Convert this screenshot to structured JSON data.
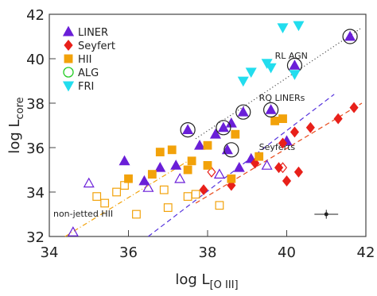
{
  "chart_data": {
    "type": "scatter",
    "x_label": {
      "main": "log L",
      "sub": "[O III]"
    },
    "y_label": {
      "main": "log L",
      "sub": "core"
    },
    "xlim": [
      34,
      42
    ],
    "xticks": [
      34,
      36,
      38,
      40,
      42
    ],
    "ylim": [
      32,
      42
    ],
    "yticks": [
      32,
      34,
      36,
      38,
      40,
      42
    ],
    "legend": "top-left",
    "series": [
      {
        "name": "LINER",
        "marker": "triangle",
        "color": "#6a1fd8",
        "x": [
          41.6,
          40.2,
          39.6,
          38.9,
          37.5,
          38.4,
          38.6,
          38.2,
          37.8,
          38.5,
          39.1,
          36.8,
          35.9,
          38.8,
          40.0,
          36.4,
          37.2,
          34.6,
          35.0,
          36.5,
          37.3,
          38.3,
          39.5
        ],
        "y": [
          41.0,
          39.7,
          37.7,
          37.6,
          36.8,
          36.9,
          37.1,
          36.6,
          36.1,
          35.9,
          35.5,
          35.1,
          35.4,
          35.1,
          36.3,
          34.5,
          35.2,
          32.2,
          34.4,
          34.2,
          34.6,
          34.8,
          35.2
        ],
        "hollow": [
          false,
          false,
          false,
          false,
          false,
          false,
          false,
          false,
          false,
          false,
          false,
          false,
          false,
          false,
          false,
          false,
          false,
          true,
          true,
          true,
          true,
          true,
          true
        ]
      },
      {
        "name": "Seyfert",
        "marker": "diamond",
        "color": "#e8201a",
        "x": [
          41.7,
          41.3,
          40.6,
          40.2,
          39.9,
          40.3,
          40.0,
          38.6,
          37.9,
          39.2,
          39.8,
          39.9,
          38.1
        ],
        "y": [
          37.8,
          37.3,
          36.9,
          36.7,
          36.2,
          34.9,
          34.5,
          34.3,
          34.1,
          35.3,
          35.1,
          35.1,
          34.9
        ],
        "hollow": [
          false,
          false,
          false,
          false,
          false,
          false,
          false,
          false,
          false,
          false,
          false,
          true,
          true
        ]
      },
      {
        "name": "HII",
        "marker": "square",
        "color": "#f2a20a",
        "x": [
          36.8,
          37.1,
          37.6,
          38.0,
          37.5,
          36.6,
          36.0,
          35.7,
          35.4,
          36.2,
          37.0,
          37.5,
          38.3,
          38.6,
          39.3,
          39.7,
          39.9,
          38.7,
          38.0,
          35.2,
          35.9,
          36.9,
          37.7
        ],
        "y": [
          35.8,
          35.9,
          35.4,
          35.2,
          35.0,
          34.8,
          34.6,
          34.0,
          33.5,
          33.0,
          33.3,
          33.8,
          33.4,
          34.6,
          35.6,
          37.2,
          37.3,
          36.6,
          36.1,
          33.8,
          34.3,
          34.1,
          33.9
        ],
        "hollow": [
          false,
          false,
          false,
          false,
          false,
          false,
          false,
          true,
          true,
          true,
          true,
          true,
          true,
          false,
          false,
          false,
          false,
          false,
          false,
          true,
          true,
          true,
          true
        ]
      },
      {
        "name": "ALG",
        "marker": "circle",
        "color": "#22cc22",
        "x": [
          41.6,
          40.2,
          39.6,
          38.9,
          37.5,
          38.4,
          38.6
        ],
        "y": [
          41.0,
          39.7,
          37.7,
          37.6,
          36.8,
          36.9,
          35.9
        ],
        "hollow": [
          true,
          true,
          true,
          true,
          true,
          true,
          true
        ]
      },
      {
        "name": "FRI",
        "marker": "triangle-down",
        "color": "#22ddee",
        "x": [
          40.3,
          39.9,
          40.2,
          39.5,
          39.6,
          38.9,
          39.1
        ],
        "y": [
          41.5,
          41.4,
          39.3,
          39.8,
          39.6,
          39.0,
          39.4
        ],
        "hollow": [
          false,
          false,
          false,
          false,
          false,
          false,
          false
        ]
      }
    ],
    "lines": [
      {
        "label": "RL AGN",
        "color": "#333333",
        "dash": "1,3",
        "x": [
          37.7,
          41.9
        ],
        "y": [
          36.4,
          41.4
        ],
        "label_x": 39.7,
        "label_y": 40.0
      },
      {
        "label": "RQ LINERs",
        "color": "#5533dd",
        "dash": "6,4",
        "x": [
          36.5,
          41.2
        ],
        "y": [
          32.0,
          38.4
        ],
        "label_x": 39.3,
        "label_y": 38.1
      },
      {
        "label": "Seyferts",
        "color": "#e84a1a",
        "dash": "6,4",
        "x": [
          37.7,
          41.9
        ],
        "y": [
          33.5,
          38.0
        ],
        "label_x": 39.3,
        "label_y": 35.9
      },
      {
        "label": "non-jetted HII",
        "color": "#f2a20a",
        "dash": "6,3,1,3",
        "x": [
          34.4,
          37.6
        ],
        "y": [
          32.0,
          35.5
        ],
        "label_x": 34.1,
        "label_y": 32.9
      }
    ],
    "error_bar": {
      "x": 41.0,
      "y": 33.0,
      "xerr": 0.3,
      "yerr": 0.2
    }
  }
}
